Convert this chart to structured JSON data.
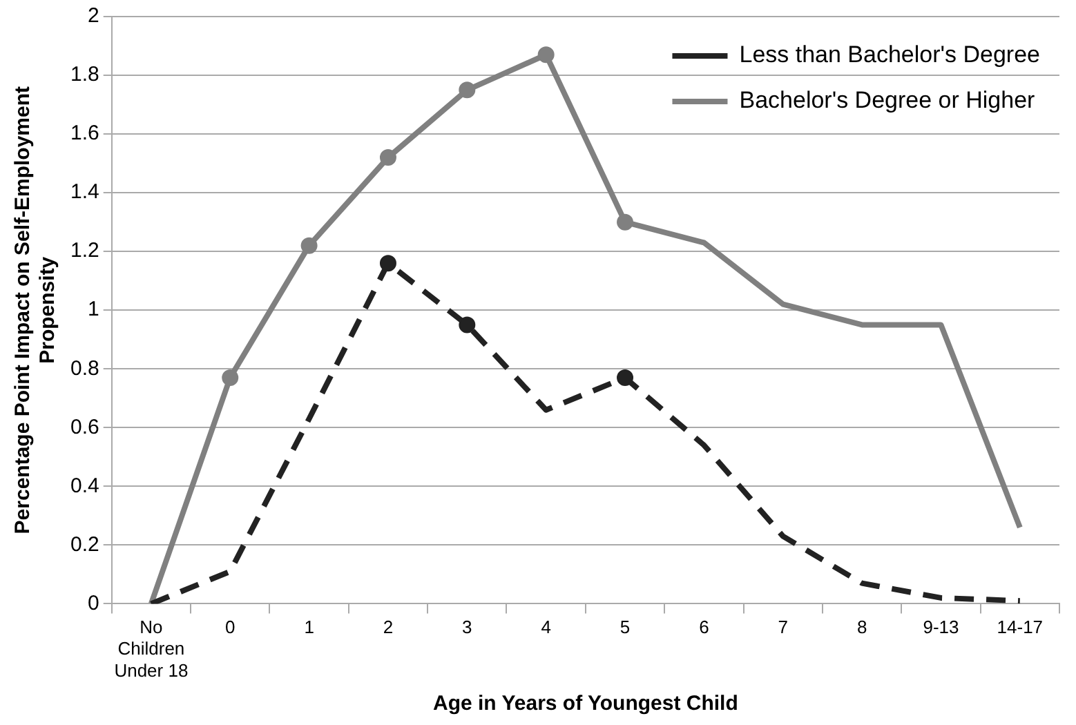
{
  "chart_data": {
    "type": "line",
    "xlabel": "Age in Years of Youngest Child",
    "ylabel": "Percentage Point Impact on Self-Employment Propensity",
    "categories": [
      "No Children Under 18",
      "0",
      "1",
      "2",
      "3",
      "4",
      "5",
      "6",
      "7",
      "8",
      "9-13",
      "14-17"
    ],
    "series": [
      {
        "name": "Less than Bachelor's Degree",
        "color": "#222222",
        "line_style": "dashed",
        "values": [
          0,
          0.11,
          0.63,
          1.16,
          0.95,
          0.66,
          0.77,
          0.54,
          0.23,
          0.07,
          0.02,
          0.01
        ]
      },
      {
        "name": "Bachelor's Degree or Higher",
        "color": "#808080",
        "line_style": "solid",
        "values": [
          0,
          0.77,
          1.22,
          1.52,
          1.75,
          1.87,
          1.3,
          1.23,
          1.02,
          0.95,
          0.95,
          0.26
        ]
      },
      {
        "type": "scatter",
        "color": "#222222",
        "marker": "circle",
        "x": [
          "2",
          "3",
          "5"
        ],
        "values": [
          1.16,
          0.95,
          0.77
        ]
      },
      {
        "type": "scatter",
        "color": "#808080",
        "marker": "circle",
        "x": [
          "0",
          "1",
          "2",
          "3",
          "4",
          "5"
        ],
        "values": [
          0.77,
          1.22,
          1.52,
          1.75,
          1.87,
          1.3
        ]
      }
    ],
    "ylim": [
      0,
      2
    ],
    "yticks": [
      0,
      0.2,
      0.4,
      0.6,
      0.8,
      1,
      1.2,
      1.4,
      1.6,
      1.8,
      2
    ],
    "grid": "y",
    "legend": "top right",
    "marker": "none"
  }
}
